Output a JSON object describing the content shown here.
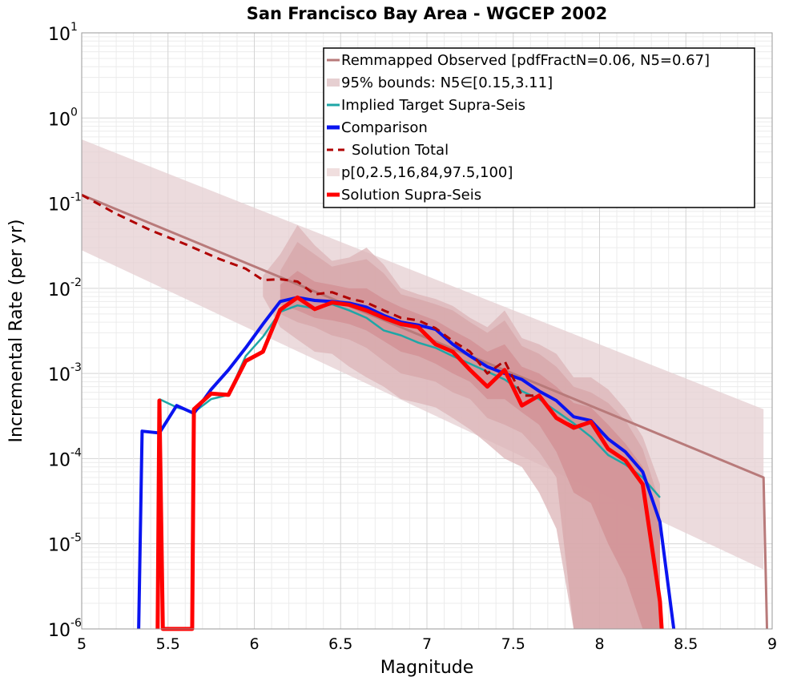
{
  "chart_data": {
    "type": "line",
    "title": "San Francisco Bay Area - WGCEP 2002",
    "xlabel": "Magnitude",
    "ylabel": "Incremental Rate (per yr)",
    "xlim": [
      5,
      9
    ],
    "ylim": [
      1e-06,
      10
    ],
    "yscale": "log",
    "grid": true,
    "legend_position": "top-right",
    "x_ticks": [
      "5",
      "5.5",
      "6",
      "6.5",
      "7",
      "7.5",
      "8",
      "8.5",
      "9"
    ],
    "y_ticks": [
      {
        "base": "10",
        "exp": "1",
        "value": 10
      },
      {
        "base": "10",
        "exp": "0",
        "value": 1
      },
      {
        "base": "10",
        "exp": "-1",
        "value": 0.1
      },
      {
        "base": "10",
        "exp": "-2",
        "value": 0.01
      },
      {
        "base": "10",
        "exp": "-3",
        "value": 0.001
      },
      {
        "base": "10",
        "exp": "-4",
        "value": 0.0001
      },
      {
        "base": "10",
        "exp": "-5",
        "value": 1e-05
      },
      {
        "base": "10",
        "exp": "-6",
        "value": 1e-06
      }
    ],
    "bands": [
      {
        "name": "95% bounds: N5∈[0.15,3.11]",
        "color": "#e6cfd1",
        "x": [
          5.0,
          8.95
        ],
        "upper": [
          0.56,
          0.00038
        ],
        "lower": [
          0.028,
          5e-06
        ]
      },
      {
        "name": "p[0,2.5,16,84,97.5,100]",
        "color": "#dcb4b7",
        "x": [
          6.05,
          6.15,
          6.25,
          6.35,
          6.45,
          6.55,
          6.65,
          6.75,
          6.85,
          6.95,
          7.05,
          7.15,
          7.25,
          7.35,
          7.45,
          7.55,
          7.65,
          7.75,
          7.85,
          7.95,
          8.05,
          8.15,
          8.25,
          8.35
        ],
        "upper": [
          0.014,
          0.025,
          0.055,
          0.032,
          0.021,
          0.023,
          0.03,
          0.019,
          0.01,
          0.0085,
          0.0075,
          0.0062,
          0.0045,
          0.0035,
          0.0055,
          0.0026,
          0.0022,
          0.0017,
          0.0009,
          0.0009,
          0.00065,
          0.00038,
          0.00018,
          5e-05
        ],
        "lower": [
          0.008,
          0.0035,
          0.0025,
          0.0018,
          0.0017,
          0.0012,
          0.0009,
          0.0007,
          0.0005,
          0.00045,
          0.0004,
          0.0003,
          0.00022,
          0.00015,
          0.0001,
          8e-05,
          4e-05,
          1.5e-05,
          1e-06,
          1e-06,
          1e-06,
          1e-06,
          1e-06,
          1e-06
        ]
      }
    ],
    "inner_bands": [
      {
        "color": "#d7a5a8",
        "x": [
          6.15,
          6.25,
          6.35,
          6.45,
          6.55,
          6.65,
          6.75,
          6.85,
          6.95,
          7.05,
          7.15,
          7.25,
          7.35,
          7.45,
          7.55,
          7.65,
          7.75,
          7.85,
          7.95,
          8.05,
          8.15,
          8.25,
          8.35
        ],
        "upper": [
          0.016,
          0.035,
          0.025,
          0.018,
          0.02,
          0.022,
          0.015,
          0.0085,
          0.0075,
          0.0065,
          0.0055,
          0.004,
          0.003,
          0.0042,
          0.0021,
          0.0017,
          0.0012,
          0.0007,
          0.0006,
          0.00045,
          0.00028,
          0.00013,
          3e-05
        ],
        "lower": [
          0.005,
          0.004,
          0.0035,
          0.0028,
          0.0025,
          0.002,
          0.0014,
          0.001,
          0.0009,
          0.0008,
          0.0006,
          0.0005,
          0.0003,
          0.00025,
          0.0002,
          0.00012,
          6e-05,
          1e-06,
          1e-06,
          1e-06,
          1e-06,
          1e-06,
          1e-06
        ]
      },
      {
        "color": "#d28f93",
        "x": [
          6.15,
          6.25,
          6.35,
          6.45,
          6.55,
          6.65,
          6.75,
          6.85,
          6.95,
          7.05,
          7.15,
          7.25,
          7.35,
          7.45,
          7.55,
          7.65,
          7.75,
          7.85,
          7.95,
          8.05,
          8.15,
          8.25,
          8.35
        ],
        "upper": [
          0.011,
          0.016,
          0.012,
          0.011,
          0.01,
          0.01,
          0.0075,
          0.006,
          0.005,
          0.0042,
          0.0032,
          0.0025,
          0.0018,
          0.0022,
          0.0012,
          0.001,
          0.0007,
          0.00045,
          0.0004,
          0.00025,
          0.00015,
          8e-05,
          1.5e-05
        ],
        "lower": [
          0.0065,
          0.0055,
          0.0045,
          0.0042,
          0.0038,
          0.0032,
          0.0024,
          0.0018,
          0.0016,
          0.0013,
          0.001,
          0.0008,
          0.0005,
          0.0005,
          0.00035,
          0.00025,
          0.00012,
          4e-05,
          3e-05,
          1e-05,
          4e-06,
          1e-06,
          1e-06
        ]
      }
    ],
    "series": [
      {
        "name": "Remmapped Observed [pdfFractN=0.06, N5=0.67]",
        "color": "#b87a7a",
        "width": 3,
        "dash": "",
        "x": [
          5.0,
          8.95,
          8.97
        ],
        "y": [
          0.125,
          6e-05,
          1e-06
        ]
      },
      {
        "name": "Implied Target Supra-Seis",
        "color": "#1fa6a6",
        "width": 2.5,
        "dash": "",
        "x": [
          5.45,
          5.55,
          5.65,
          5.75,
          5.85,
          5.95,
          6.05,
          6.15,
          6.25,
          6.35,
          6.45,
          6.55,
          6.65,
          6.75,
          6.85,
          6.95,
          7.05,
          7.15,
          7.25,
          7.35,
          7.45,
          7.55,
          7.65,
          7.75,
          7.85,
          7.95,
          8.05,
          8.15,
          8.25,
          8.35
        ],
        "y": [
          0.0005,
          0.0004,
          0.00035,
          0.0005,
          0.00056,
          0.0016,
          0.0027,
          0.0053,
          0.0063,
          0.0058,
          0.0065,
          0.0055,
          0.0045,
          0.0032,
          0.0028,
          0.0023,
          0.002,
          0.0016,
          0.0013,
          0.00105,
          0.00085,
          0.00062,
          0.0005,
          0.00036,
          0.00026,
          0.00018,
          0.00011,
          8.5e-05,
          6e-05,
          3.5e-05
        ]
      },
      {
        "name": "Comparison",
        "color": "#0a14f0",
        "width": 4,
        "dash": "",
        "x": [
          5.33,
          5.35,
          5.45,
          5.55,
          5.65,
          5.75,
          5.85,
          5.95,
          6.05,
          6.15,
          6.25,
          6.35,
          6.45,
          6.55,
          6.65,
          6.75,
          6.85,
          6.95,
          7.05,
          7.15,
          7.25,
          7.35,
          7.45,
          7.55,
          7.65,
          7.75,
          7.85,
          7.95,
          8.05,
          8.15,
          8.25,
          8.35,
          8.43
        ],
        "y": [
          1e-06,
          0.00021,
          0.0002,
          0.00042,
          0.00034,
          0.00065,
          0.0011,
          0.002,
          0.0038,
          0.007,
          0.0078,
          0.0072,
          0.007,
          0.0067,
          0.006,
          0.0048,
          0.004,
          0.0037,
          0.0033,
          0.0022,
          0.0016,
          0.0012,
          0.001,
          0.00085,
          0.00062,
          0.00048,
          0.00031,
          0.00028,
          0.00017,
          0.00012,
          7e-05,
          1.8e-05,
          1e-06
        ]
      },
      {
        "name": "Solution Total",
        "color": "#b00000",
        "width": 3,
        "dash": "10,7",
        "x": [
          5.0,
          5.2,
          5.4,
          5.6,
          5.8,
          5.95,
          6.05,
          6.15,
          6.25,
          6.35,
          6.45,
          6.55,
          6.65,
          6.75,
          6.85,
          6.95,
          7.05,
          7.15,
          7.25,
          7.35,
          7.45,
          7.55,
          7.65,
          7.75,
          7.85,
          7.95,
          8.05,
          8.15,
          8.25,
          8.35
        ],
        "y": [
          0.125,
          0.075,
          0.048,
          0.033,
          0.022,
          0.017,
          0.0125,
          0.0128,
          0.012,
          0.0085,
          0.009,
          0.0076,
          0.0068,
          0.0055,
          0.0045,
          0.0042,
          0.0034,
          0.0024,
          0.0018,
          0.001,
          0.0014,
          0.00055,
          0.00055,
          0.0003,
          0.00024,
          0.00027,
          0.00013,
          9.5e-05,
          5e-05,
          2e-06
        ]
      },
      {
        "name": "Solution Supra-Seis",
        "color": "#ff0000",
        "width": 5,
        "dash": "",
        "x": [
          5.44,
          5.45,
          5.47,
          5.64,
          5.65,
          5.75,
          5.85,
          5.95,
          6.05,
          6.15,
          6.25,
          6.35,
          6.45,
          6.55,
          6.65,
          6.75,
          6.85,
          6.95,
          7.05,
          7.15,
          7.25,
          7.35,
          7.45,
          7.55,
          7.65,
          7.75,
          7.85,
          7.95,
          8.05,
          8.15,
          8.25,
          8.35,
          8.36
        ],
        "y": [
          1e-06,
          0.00048,
          1e-06,
          1e-06,
          0.00038,
          0.00058,
          0.00056,
          0.0014,
          0.0018,
          0.0056,
          0.0078,
          0.0057,
          0.0068,
          0.0064,
          0.0055,
          0.0045,
          0.0038,
          0.0035,
          0.0022,
          0.0018,
          0.0011,
          0.0007,
          0.0011,
          0.00042,
          0.00055,
          0.0003,
          0.00023,
          0.00027,
          0.00013,
          9.5e-05,
          5e-05,
          2.1e-06,
          1e-06
        ]
      }
    ],
    "legend": [
      {
        "label": "Remmapped Observed [pdfFractN=0.06, N5=0.67]",
        "kind": "line",
        "color": "#b87a7a",
        "dash": ""
      },
      {
        "label": "95% bounds: N5∈[0.15,3.11]",
        "kind": "patch",
        "color": "#e6cfd1",
        "dash": ""
      },
      {
        "label": "Implied Target Supra-Seis",
        "kind": "line",
        "color": "#1fa6a6",
        "dash": ""
      },
      {
        "label": "Comparison",
        "kind": "line-thick",
        "color": "#0a14f0",
        "dash": ""
      },
      {
        "label": "Solution Total",
        "kind": "line",
        "color": "#b00000",
        "dash": "10,7"
      },
      {
        "label": "p[0,2.5,16,84,97.5,100]",
        "kind": "patch",
        "color": "#f0dede",
        "dash": ""
      },
      {
        "label": "Solution Supra-Seis",
        "kind": "line-thick",
        "color": "#ff0000",
        "dash": ""
      }
    ]
  }
}
